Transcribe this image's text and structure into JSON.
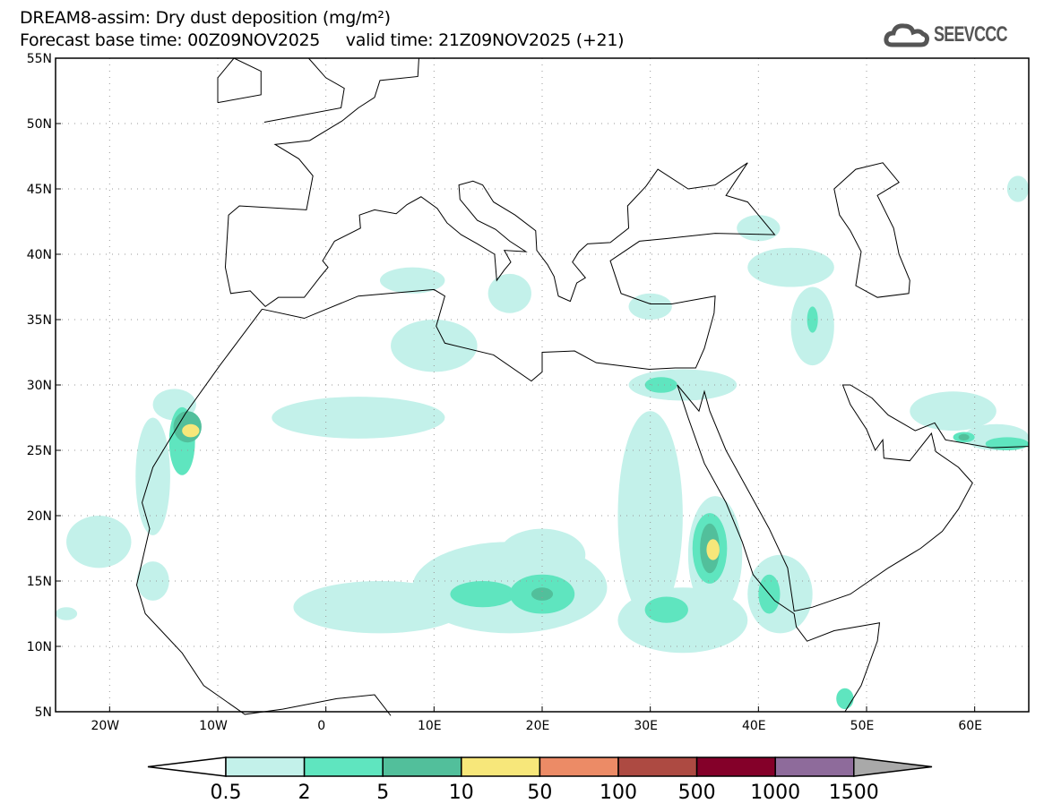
{
  "header": {
    "title": "DREAM8-assim: Dry dust deposition (mg/m²)",
    "subtitle": "Forecast base time: 00Z09NOV2025     valid time: 21Z09NOV2025 (+21)",
    "logo_text": "SEEVCCC"
  },
  "map": {
    "lon_range": [
      -25,
      65
    ],
    "lat_range": [
      5,
      55
    ],
    "lon_ticks": [
      {
        "v": -20,
        "label": "20W"
      },
      {
        "v": -10,
        "label": "10W"
      },
      {
        "v": 0,
        "label": "0"
      },
      {
        "v": 10,
        "label": "10E"
      },
      {
        "v": 20,
        "label": "20E"
      },
      {
        "v": 30,
        "label": "30E"
      },
      {
        "v": 40,
        "label": "40E"
      },
      {
        "v": 50,
        "label": "50E"
      },
      {
        "v": 60,
        "label": "60E"
      }
    ],
    "lat_ticks": [
      {
        "v": 5,
        "label": "5N"
      },
      {
        "v": 10,
        "label": "10N"
      },
      {
        "v": 15,
        "label": "15N"
      },
      {
        "v": 20,
        "label": "20N"
      },
      {
        "v": 25,
        "label": "25N"
      },
      {
        "v": 30,
        "label": "30N"
      },
      {
        "v": 35,
        "label": "35N"
      },
      {
        "v": 40,
        "label": "40N"
      },
      {
        "v": 45,
        "label": "45N"
      },
      {
        "v": 50,
        "label": "50N"
      },
      {
        "v": 55,
        "label": "55N"
      }
    ]
  },
  "colorbar": {
    "levels": [
      "0.5",
      "2",
      "5",
      "10",
      "50",
      "100",
      "500",
      "1000",
      "1500"
    ],
    "colors": [
      "#c3f1ea",
      "#5fe5bf",
      "#52bf9b",
      "#f7e77a",
      "#ec8b66",
      "#ad4a42",
      "#840029",
      "#8e6b9b"
    ],
    "under_color": "#ffffff",
    "over_color": "#a9a9a9"
  }
}
